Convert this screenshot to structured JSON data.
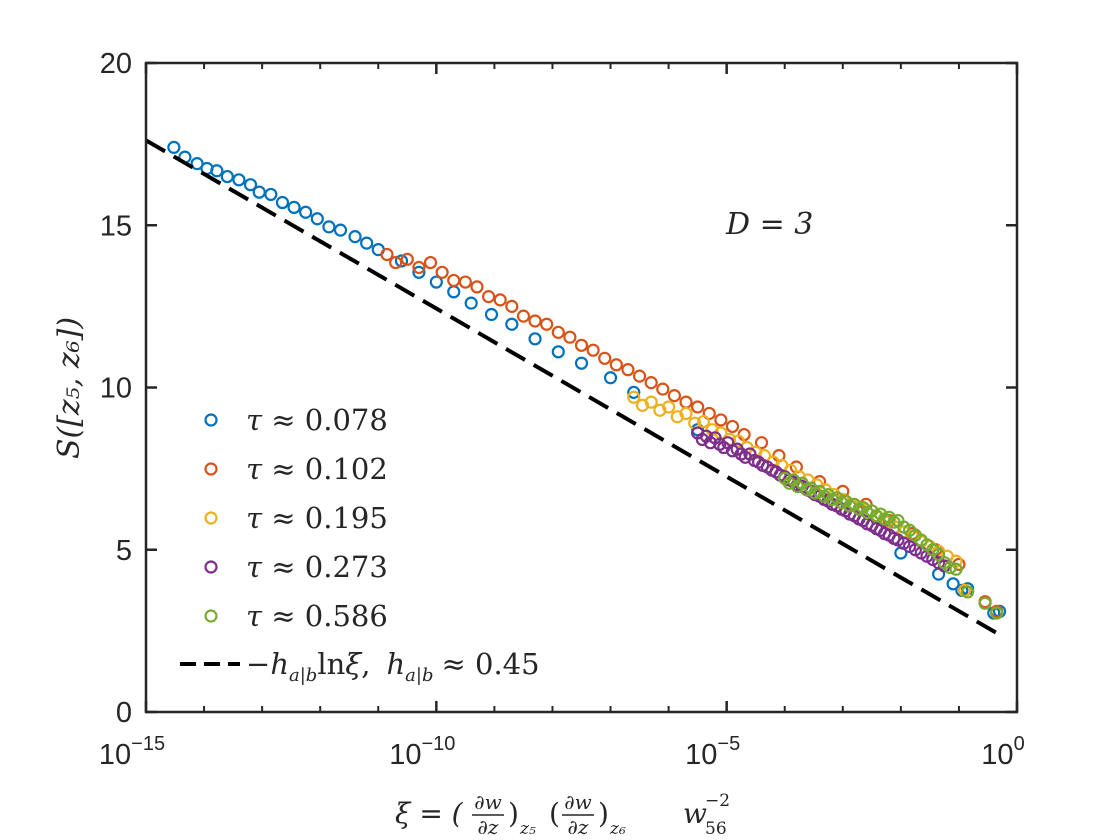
{
  "chart_data": {
    "type": "scatter",
    "x_scale": "log10",
    "xlim_log10": [
      -15,
      0
    ],
    "ylim": [
      0,
      20
    ],
    "xticks": [
      {
        "log10": -15,
        "base": "10",
        "exp": "−15"
      },
      {
        "log10": -10,
        "base": "10",
        "exp": "−10"
      },
      {
        "log10": -5,
        "base": "10",
        "exp": "−5"
      },
      {
        "log10": 0,
        "base": "10",
        "exp": "0"
      }
    ],
    "yticks": [
      0,
      5,
      10,
      15,
      20
    ],
    "ylabel": "S([z₅, z₆])",
    "xlabel": {
      "prefix": "ξ = (",
      "frac_num": "∂w",
      "frac_den": "∂z",
      "sub1": "z₅",
      "sub2": "z₆",
      "tail": "w",
      "tail_sub": "56",
      "tail_sup": "−2"
    },
    "annotation": "D = 3",
    "fit": {
      "slope_per_decade": -1.0362,
      "intercept": 2.0723,
      "x_range_log10": [
        -15,
        -0.3
      ]
    },
    "series": [
      {
        "name": "τ ≈ 0.078",
        "legend_value": "0.078",
        "color": "#0072BD",
        "points": [
          [
            -14.52,
            17.4
          ],
          [
            -14.33,
            17.1
          ],
          [
            -14.12,
            16.9
          ],
          [
            -13.95,
            16.75
          ],
          [
            -13.78,
            16.68
          ],
          [
            -13.6,
            16.5
          ],
          [
            -13.4,
            16.4
          ],
          [
            -13.2,
            16.25
          ],
          [
            -13.05,
            16.02
          ],
          [
            -12.85,
            15.95
          ],
          [
            -12.65,
            15.7
          ],
          [
            -12.45,
            15.55
          ],
          [
            -12.25,
            15.4
          ],
          [
            -12.05,
            15.2
          ],
          [
            -11.85,
            14.95
          ],
          [
            -11.65,
            14.85
          ],
          [
            -11.4,
            14.65
          ],
          [
            -11.2,
            14.45
          ],
          [
            -11.0,
            14.25
          ],
          [
            -10.6,
            13.9
          ],
          [
            -10.3,
            13.55
          ],
          [
            -10.0,
            13.25
          ],
          [
            -9.7,
            12.95
          ],
          [
            -9.4,
            12.6
          ],
          [
            -9.05,
            12.25
          ],
          [
            -8.7,
            11.95
          ],
          [
            -8.3,
            11.5
          ],
          [
            -7.9,
            11.1
          ],
          [
            -7.5,
            10.75
          ],
          [
            -7.0,
            10.3
          ],
          [
            -6.6,
            9.85
          ],
          [
            -5.5,
            8.7
          ],
          [
            -2.0,
            4.9
          ],
          [
            -1.35,
            4.25
          ],
          [
            -0.95,
            3.75
          ],
          [
            -0.85,
            3.8
          ],
          [
            -1.1,
            3.95
          ],
          [
            -0.3,
            3.1
          ],
          [
            -0.4,
            3.05
          ]
        ]
      },
      {
        "name": "τ ≈ 0.102",
        "legend_value": "0.102",
        "color": "#D95319",
        "points": [
          [
            -10.85,
            14.1
          ],
          [
            -10.7,
            13.85
          ],
          [
            -10.5,
            13.95
          ],
          [
            -10.3,
            13.7
          ],
          [
            -10.1,
            13.85
          ],
          [
            -9.9,
            13.55
          ],
          [
            -9.7,
            13.3
          ],
          [
            -9.5,
            13.25
          ],
          [
            -9.3,
            13.1
          ],
          [
            -9.1,
            12.8
          ],
          [
            -8.9,
            12.7
          ],
          [
            -8.7,
            12.5
          ],
          [
            -8.5,
            12.2
          ],
          [
            -8.3,
            12.05
          ],
          [
            -8.1,
            11.95
          ],
          [
            -7.9,
            11.7
          ],
          [
            -7.7,
            11.55
          ],
          [
            -7.5,
            11.3
          ],
          [
            -7.3,
            11.15
          ],
          [
            -7.1,
            10.9
          ],
          [
            -6.9,
            10.7
          ],
          [
            -6.7,
            10.55
          ],
          [
            -6.5,
            10.35
          ],
          [
            -6.3,
            10.15
          ],
          [
            -6.1,
            9.95
          ],
          [
            -5.9,
            9.75
          ],
          [
            -5.7,
            9.55
          ],
          [
            -5.5,
            9.4
          ],
          [
            -5.3,
            9.2
          ],
          [
            -5.1,
            9.0
          ],
          [
            -4.9,
            8.8
          ],
          [
            -4.7,
            8.55
          ],
          [
            -4.4,
            8.3
          ],
          [
            -4.1,
            7.9
          ],
          [
            -3.8,
            7.55
          ],
          [
            -3.4,
            7.1
          ],
          [
            -3.0,
            6.8
          ],
          [
            -2.6,
            6.4
          ],
          [
            -2.2,
            5.9
          ],
          [
            -1.8,
            5.5
          ],
          [
            -1.4,
            5.0
          ],
          [
            -1.0,
            4.55
          ],
          [
            -0.9,
            3.75
          ],
          [
            -0.55,
            3.4
          ],
          [
            -0.35,
            3.1
          ]
        ]
      },
      {
        "name": "τ ≈ 0.195",
        "legend_value": "0.195",
        "color": "#EDB120",
        "points": [
          [
            -6.6,
            9.7
          ],
          [
            -6.45,
            9.45
          ],
          [
            -6.3,
            9.55
          ],
          [
            -6.15,
            9.3
          ],
          [
            -6.0,
            9.4
          ],
          [
            -5.85,
            9.1
          ],
          [
            -5.7,
            9.2
          ],
          [
            -5.55,
            8.9
          ],
          [
            -5.4,
            8.95
          ],
          [
            -5.25,
            8.7
          ],
          [
            -5.1,
            8.6
          ],
          [
            -4.95,
            8.4
          ],
          [
            -4.8,
            8.35
          ],
          [
            -4.65,
            8.15
          ],
          [
            -4.5,
            8.0
          ],
          [
            -4.35,
            7.9
          ],
          [
            -4.2,
            7.7
          ],
          [
            -4.05,
            7.6
          ],
          [
            -3.9,
            7.45
          ],
          [
            -3.75,
            7.25
          ],
          [
            -3.6,
            7.15
          ],
          [
            -3.45,
            7.0
          ],
          [
            -3.3,
            6.85
          ],
          [
            -3.15,
            6.7
          ],
          [
            -3.0,
            6.55
          ],
          [
            -2.85,
            6.4
          ],
          [
            -2.7,
            6.3
          ],
          [
            -2.55,
            6.1
          ],
          [
            -2.4,
            6.0
          ],
          [
            -2.25,
            5.85
          ],
          [
            -2.1,
            5.7
          ],
          [
            -1.95,
            5.55
          ],
          [
            -1.8,
            5.4
          ],
          [
            -1.65,
            5.25
          ],
          [
            -1.5,
            5.1
          ],
          [
            -1.35,
            4.95
          ],
          [
            -1.2,
            4.8
          ],
          [
            -1.05,
            4.65
          ],
          [
            -0.9,
            3.75
          ]
        ]
      },
      {
        "name": "τ ≈ 0.273",
        "legend_value": "0.273",
        "color": "#7E2F8E",
        "points": [
          [
            -5.5,
            8.6
          ],
          [
            -5.42,
            8.4
          ],
          [
            -5.35,
            8.5
          ],
          [
            -5.28,
            8.3
          ],
          [
            -5.2,
            8.45
          ],
          [
            -5.12,
            8.25
          ],
          [
            -5.05,
            8.15
          ],
          [
            -4.98,
            8.3
          ],
          [
            -4.9,
            8.05
          ],
          [
            -4.82,
            8.1
          ],
          [
            -4.75,
            7.95
          ],
          [
            -4.68,
            7.85
          ],
          [
            -4.6,
            7.95
          ],
          [
            -4.52,
            7.75
          ],
          [
            -4.45,
            7.7
          ],
          [
            -4.38,
            7.6
          ],
          [
            -4.3,
            7.55
          ],
          [
            -4.22,
            7.45
          ],
          [
            -4.15,
            7.4
          ],
          [
            -4.08,
            7.3
          ],
          [
            -4.0,
            7.25
          ],
          [
            -3.92,
            7.15
          ],
          [
            -3.85,
            7.1
          ],
          [
            -3.78,
            7.0
          ],
          [
            -3.7,
            6.95
          ],
          [
            -3.62,
            6.85
          ],
          [
            -3.55,
            6.8
          ],
          [
            -3.48,
            6.7
          ],
          [
            -3.4,
            6.65
          ],
          [
            -3.32,
            6.55
          ],
          [
            -3.25,
            6.5
          ],
          [
            -3.18,
            6.4
          ],
          [
            -3.1,
            6.35
          ],
          [
            -3.02,
            6.25
          ],
          [
            -2.95,
            6.2
          ],
          [
            -2.88,
            6.1
          ],
          [
            -2.8,
            6.05
          ],
          [
            -2.72,
            5.95
          ],
          [
            -2.65,
            5.9
          ],
          [
            -2.58,
            5.8
          ],
          [
            -2.5,
            5.75
          ],
          [
            -2.42,
            5.65
          ],
          [
            -2.35,
            5.6
          ],
          [
            -2.28,
            5.5
          ],
          [
            -2.2,
            5.45
          ],
          [
            -2.12,
            5.35
          ],
          [
            -2.05,
            5.3
          ],
          [
            -1.95,
            5.2
          ],
          [
            -1.85,
            5.1
          ],
          [
            -1.75,
            5.0
          ],
          [
            -1.65,
            4.9
          ],
          [
            -1.55,
            4.8
          ],
          [
            -1.45,
            4.7
          ],
          [
            -1.35,
            4.6
          ],
          [
            -1.25,
            4.5
          ]
        ]
      },
      {
        "name": "τ ≈ 0.586",
        "legend_value": "0.586",
        "color": "#77AC30",
        "points": [
          [
            -4.0,
            7.2
          ],
          [
            -3.92,
            7.05
          ],
          [
            -3.85,
            7.15
          ],
          [
            -3.78,
            6.95
          ],
          [
            -3.7,
            7.05
          ],
          [
            -3.62,
            6.85
          ],
          [
            -3.55,
            6.9
          ],
          [
            -3.48,
            6.75
          ],
          [
            -3.4,
            6.8
          ],
          [
            -3.32,
            6.65
          ],
          [
            -3.25,
            6.7
          ],
          [
            -3.18,
            6.55
          ],
          [
            -3.1,
            6.6
          ],
          [
            -3.02,
            6.45
          ],
          [
            -2.95,
            6.5
          ],
          [
            -2.88,
            6.35
          ],
          [
            -2.8,
            6.4
          ],
          [
            -2.72,
            6.25
          ],
          [
            -2.65,
            6.3
          ],
          [
            -2.58,
            6.15
          ],
          [
            -2.5,
            6.2
          ],
          [
            -2.42,
            6.05
          ],
          [
            -2.35,
            6.1
          ],
          [
            -2.28,
            5.95
          ],
          [
            -2.2,
            6.0
          ],
          [
            -2.12,
            5.85
          ],
          [
            -2.05,
            5.9
          ],
          [
            -1.95,
            5.7
          ],
          [
            -1.85,
            5.6
          ],
          [
            -1.75,
            5.45
          ],
          [
            -1.65,
            5.3
          ],
          [
            -1.55,
            5.15
          ],
          [
            -1.45,
            5.0
          ],
          [
            -1.35,
            4.85
          ],
          [
            -1.25,
            4.6
          ],
          [
            -1.15,
            4.45
          ],
          [
            -1.05,
            4.4
          ],
          [
            -0.85,
            3.7
          ],
          [
            -0.55,
            3.35
          ],
          [
            -0.35,
            3.05
          ]
        ]
      }
    ],
    "legend": {
      "symbol": "τ ≈",
      "fit_label": {
        "minus": "−",
        "h": "h",
        "h_sub": "a|b",
        "ln": "ln",
        "xi": "ξ",
        "comma": ",",
        "approx": "≈ 0.45"
      }
    }
  }
}
